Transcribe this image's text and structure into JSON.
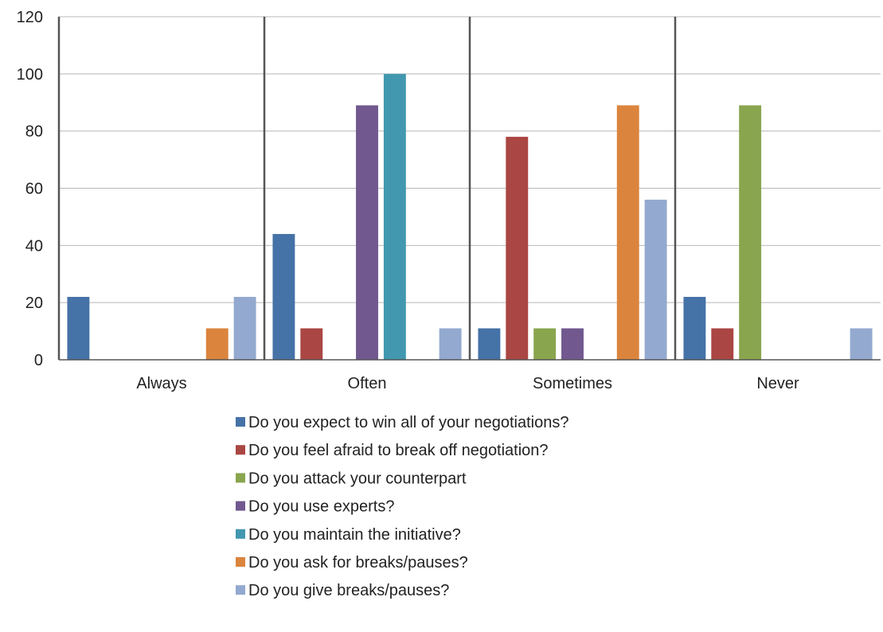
{
  "chart_data": {
    "type": "bar",
    "title": "",
    "xlabel": "",
    "ylabel": "",
    "ylim": [
      0,
      120
    ],
    "yticks": [
      0,
      20,
      40,
      60,
      80,
      100,
      120
    ],
    "grid": true,
    "legend_position": "bottom",
    "categories": [
      "Always",
      "Often",
      "Sometimes",
      "Never"
    ],
    "series": [
      {
        "name": "Do you expect to win all of your negotiations?",
        "color": "#4572A7",
        "values": [
          22,
          44,
          11,
          22
        ]
      },
      {
        "name": "Do you feel afraid to break off negotiation?",
        "color": "#AA4643",
        "values": [
          0,
          11,
          78,
          11
        ]
      },
      {
        "name": "Do you attack your counterpart",
        "color": "#89A54E",
        "values": [
          0,
          0,
          11,
          89
        ]
      },
      {
        "name": "Do you use experts?",
        "color": "#71588F",
        "values": [
          0,
          89,
          11,
          0
        ]
      },
      {
        "name": "Do you maintain the initiative?",
        "color": "#4198AF",
        "values": [
          0,
          100,
          0,
          0
        ]
      },
      {
        "name": "Do you ask for breaks/pauses?",
        "color": "#DB843D",
        "values": [
          11,
          0,
          89,
          0
        ]
      },
      {
        "name": "Do you give breaks/pauses?",
        "color": "#93A9CF",
        "values": [
          22,
          11,
          56,
          11
        ]
      }
    ]
  }
}
